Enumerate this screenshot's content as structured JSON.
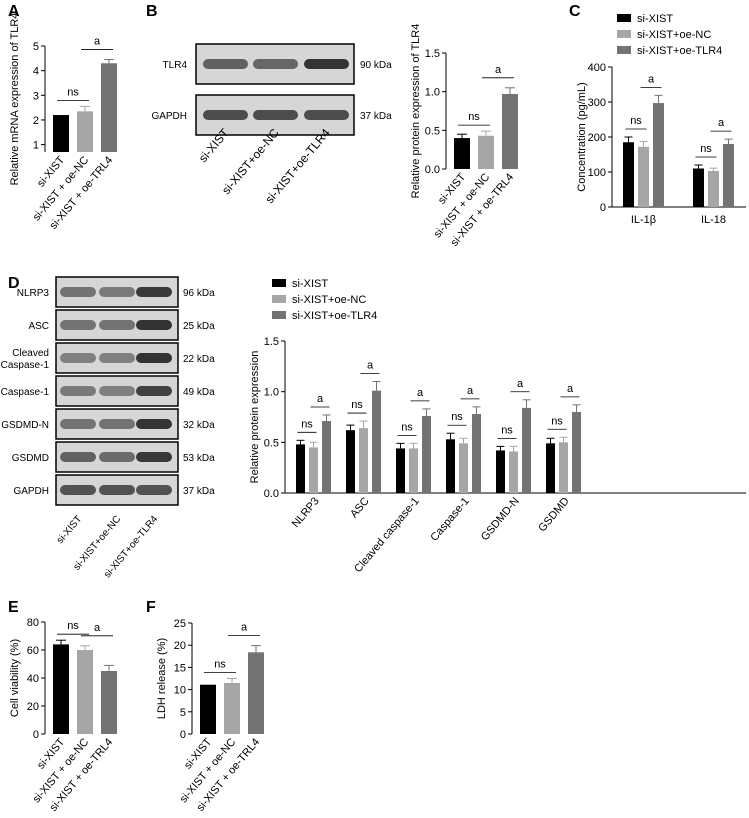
{
  "panel_letters": {
    "a": "A",
    "b": "B",
    "c": "C",
    "d": "D",
    "e": "E",
    "f": "F"
  },
  "blots": {
    "b": {
      "rows": [
        {
          "label": "TLR4",
          "size": "90 kDa",
          "intensity": [
            0.62,
            0.6,
            0.8
          ]
        },
        {
          "label": "GAPDH",
          "size": "37 kDa",
          "intensity": [
            0.7,
            0.7,
            0.7
          ]
        }
      ],
      "lanes": [
        "si-XIST",
        "si-XIST+oe-NC",
        "si-XIST+oe-TLR4"
      ]
    },
    "d": {
      "rows": [
        {
          "label": "NLRP3",
          "size": "96 kDa",
          "intensity": [
            0.55,
            0.52,
            0.78
          ]
        },
        {
          "label": "ASC",
          "size": "25 kDa",
          "intensity": [
            0.55,
            0.55,
            0.8
          ]
        },
        {
          "label": "Cleaved\nCaspase-1",
          "size": "22 kDa",
          "intensity": [
            0.5,
            0.5,
            0.8
          ]
        },
        {
          "label": "Caspase-1",
          "size": "49 kDa",
          "intensity": [
            0.52,
            0.5,
            0.75
          ]
        },
        {
          "label": "GSDMD-N",
          "size": "32 kDa",
          "intensity": [
            0.55,
            0.55,
            0.8
          ]
        },
        {
          "label": "GSDMD",
          "size": "53 kDa",
          "intensity": [
            0.62,
            0.58,
            0.78
          ]
        },
        {
          "label": "GAPDH",
          "size": "37 kDa",
          "intensity": [
            0.68,
            0.68,
            0.68
          ]
        }
      ],
      "lanes": [
        "si-XIST",
        "si-XIST+oe-NC",
        "si-XIST+oe-TLR4"
      ]
    }
  },
  "chart_data": [
    {
      "id": "A",
      "type": "bar",
      "categories": [
        "si-XIST",
        "si-XIST + oe-NC",
        "si-XIST + oe-TRL4"
      ],
      "values": [
        2.2,
        2.35,
        4.3
      ],
      "errors": [
        0.0,
        0.2,
        0.15
      ],
      "ylabel": "Relative mRNA expression of TLR4",
      "ylim": [
        0.7,
        5
      ],
      "yticks": [
        1,
        2,
        3,
        4,
        5
      ],
      "colors": [
        "#000000",
        "#a6a6a6",
        "#737373"
      ],
      "annotations": [
        {
          "text": "ns",
          "from": 0,
          "to": 1
        },
        {
          "text": "a",
          "from": 1,
          "to": 2
        }
      ]
    },
    {
      "id": "B",
      "type": "bar",
      "categories": [
        "si-XIST",
        "si-XIST + oe-NC",
        "si-XIST + oe-TRL4"
      ],
      "values": [
        0.4,
        0.43,
        0.97
      ],
      "errors": [
        0.05,
        0.06,
        0.08
      ],
      "ylabel": "Relative protein expression of TLR4",
      "ylim": [
        0,
        1.5
      ],
      "yticks": [
        0.0,
        0.5,
        1.0,
        1.5
      ],
      "colors": [
        "#000000",
        "#a6a6a6",
        "#737373"
      ],
      "annotations": [
        {
          "text": "ns",
          "from": 0,
          "to": 1
        },
        {
          "text": "a",
          "from": 1,
          "to": 2
        }
      ]
    },
    {
      "id": "C",
      "type": "bar",
      "categories": [
        "IL-1β",
        "IL-18"
      ],
      "series": [
        {
          "name": "si-XIST",
          "values": [
            185,
            110
          ],
          "errors": [
            15,
            10
          ]
        },
        {
          "name": "si-XIST+oe-NC",
          "values": [
            172,
            103
          ],
          "errors": [
            15,
            8
          ]
        },
        {
          "name": "si-XIST+oe-TLR4",
          "values": [
            297,
            180
          ],
          "errors": [
            22,
            14
          ]
        }
      ],
      "ylabel": "Concentration (pg/mL)",
      "ylim": [
        0,
        400
      ],
      "yticks": [
        0,
        100,
        200,
        300,
        400
      ],
      "colors": [
        "#000000",
        "#a6a6a6",
        "#737373"
      ],
      "legend": "top"
    },
    {
      "id": "D",
      "type": "bar",
      "categories": [
        "NLRP3",
        "ASC",
        "Cleaved caspase-1",
        "Caspase-1",
        "GSDMD-N",
        "GSDMD"
      ],
      "series": [
        {
          "name": "si-XIST",
          "values": [
            0.48,
            0.62,
            0.44,
            0.53,
            0.42,
            0.49
          ],
          "errors": [
            0.04,
            0.05,
            0.05,
            0.06,
            0.04,
            0.05
          ]
        },
        {
          "name": "si-XIST+oe-NC",
          "values": [
            0.45,
            0.64,
            0.44,
            0.49,
            0.41,
            0.5
          ],
          "errors": [
            0.05,
            0.07,
            0.05,
            0.05,
            0.05,
            0.05
          ]
        },
        {
          "name": "si-XIST+oe-TLR4",
          "values": [
            0.71,
            1.01,
            0.76,
            0.78,
            0.84,
            0.8
          ],
          "errors": [
            0.06,
            0.09,
            0.07,
            0.07,
            0.08,
            0.07
          ]
        }
      ],
      "ylabel": "Relative protein expression",
      "ylim": [
        0,
        1.5
      ],
      "yticks": [
        0.0,
        0.5,
        1.0,
        1.5
      ],
      "colors": [
        "#000000",
        "#a6a6a6",
        "#737373"
      ],
      "legend": "top-left"
    },
    {
      "id": "E",
      "type": "bar",
      "categories": [
        "si-XIST",
        "si-XIST + oe-NC",
        "si-XIST + oe-TRL4"
      ],
      "values": [
        64,
        60,
        45
      ],
      "errors": [
        3,
        3,
        4
      ],
      "ylabel": "Cell viability (%)",
      "ylim": [
        0,
        80
      ],
      "yticks": [
        0,
        20,
        40,
        60,
        80
      ],
      "colors": [
        "#000000",
        "#a6a6a6",
        "#737373"
      ],
      "annotations": [
        {
          "text": "ns",
          "from": 0,
          "to": 1
        },
        {
          "text": "a",
          "from": 1,
          "to": 2
        }
      ]
    },
    {
      "id": "F",
      "type": "bar",
      "categories": [
        "si-XIST",
        "si-XIST + oe-NC",
        "si-XIST + oe-TRL4"
      ],
      "values": [
        11.1,
        11.5,
        18.4
      ],
      "errors": [
        0.0,
        1.0,
        1.5
      ],
      "ylabel": "LDH release (%)",
      "ylim": [
        0,
        25
      ],
      "yticks": [
        0,
        5,
        10,
        15,
        20,
        25
      ],
      "colors": [
        "#000000",
        "#a6a6a6",
        "#737373"
      ],
      "annotations": [
        {
          "text": "ns",
          "from": 0,
          "to": 1
        },
        {
          "text": "a",
          "from": 1,
          "to": 2
        }
      ]
    }
  ]
}
